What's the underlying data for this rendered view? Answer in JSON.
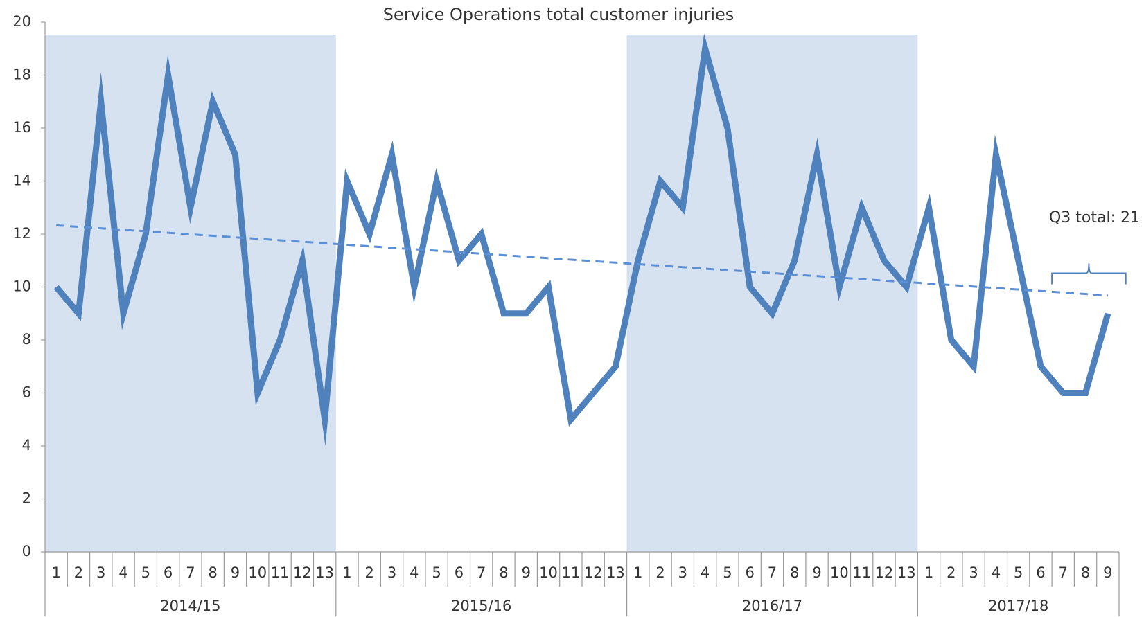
{
  "chart_data": {
    "type": "line",
    "title": "Service Operations total customer injuries",
    "groups": [
      {
        "label": "2014/15",
        "shaded": true,
        "categories": [
          "1",
          "2",
          "3",
          "4",
          "5",
          "6",
          "7",
          "8",
          "9",
          "10",
          "11",
          "12",
          "13"
        ]
      },
      {
        "label": "2015/16",
        "shaded": false,
        "categories": [
          "1",
          "2",
          "3",
          "4",
          "5",
          "6",
          "7",
          "8",
          "9",
          "10",
          "11",
          "12",
          "13"
        ]
      },
      {
        "label": "2016/17",
        "shaded": true,
        "categories": [
          "1",
          "2",
          "3",
          "4",
          "5",
          "6",
          "7",
          "8",
          "9",
          "10",
          "11",
          "12",
          "13"
        ]
      },
      {
        "label": "2017/18",
        "shaded": false,
        "categories": [
          "1",
          "2",
          "3",
          "4",
          "5",
          "6",
          "7",
          "8",
          "9"
        ]
      }
    ],
    "color": "#4f81bd",
    "shade_color": "#d7e2f0",
    "values": [
      10,
      9,
      17,
      9,
      12,
      18,
      13,
      17,
      15,
      6,
      8,
      11,
      5,
      14,
      12,
      15,
      10,
      14,
      11,
      12,
      9,
      9,
      10,
      5,
      6,
      7,
      11,
      14,
      13,
      19,
      16,
      10,
      9,
      11,
      15,
      10,
      13,
      11,
      10,
      13,
      8,
      7,
      15,
      11,
      7,
      6,
      6,
      9
    ],
    "trend": {
      "color": "#5b8fd6",
      "values": [
        12.33,
        9.68
      ]
    },
    "annotation": "Q3 total: 21",
    "ylim": [
      0,
      20
    ],
    "yticks": [
      0,
      2,
      4,
      6,
      8,
      10,
      12,
      14,
      16,
      18,
      20
    ]
  }
}
